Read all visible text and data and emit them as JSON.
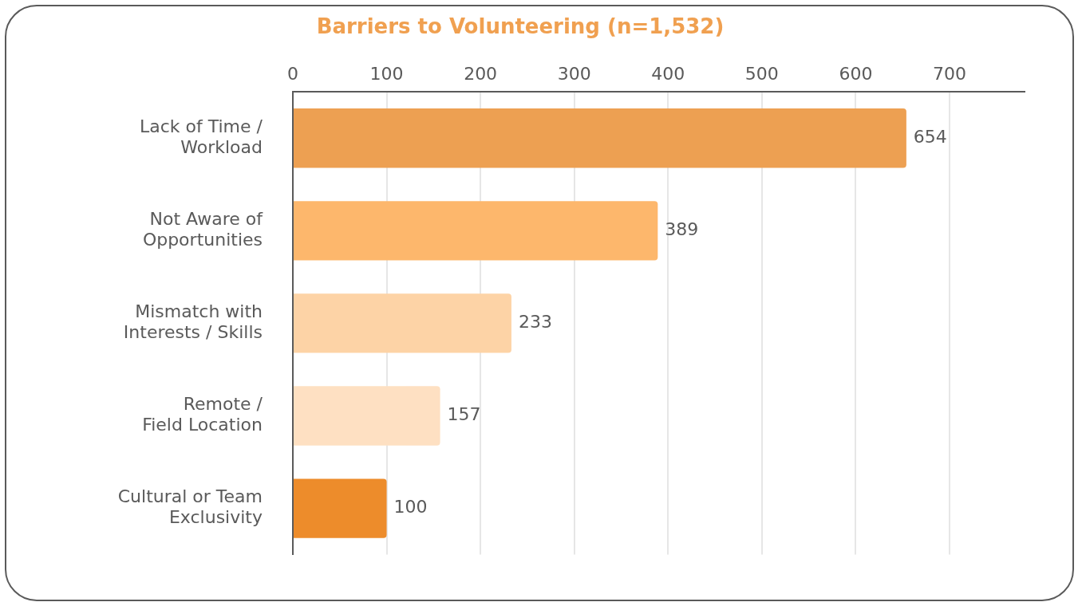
{
  "chart_data": {
    "type": "bar",
    "orientation": "horizontal",
    "title": "Barriers to Volunteering (n=1,532)",
    "categories": [
      "Lack of Time /\nWorkload",
      "Not Aware of\nOpportunities",
      "Mismatch with\nInterests / Skills",
      "Remote /\nField Location",
      "Cultural or Team\nExclusivity"
    ],
    "values": [
      654,
      389,
      233,
      157,
      100
    ],
    "colors": [
      "#eda052",
      "#fdb76c",
      "#fdd3a6",
      "#fee0c2",
      "#ed8c2b"
    ],
    "xlim": [
      0,
      780
    ],
    "xticks": [
      0,
      100,
      200,
      300,
      400,
      500,
      600,
      700
    ],
    "grid": "x",
    "data_labels": true,
    "legend": false
  }
}
